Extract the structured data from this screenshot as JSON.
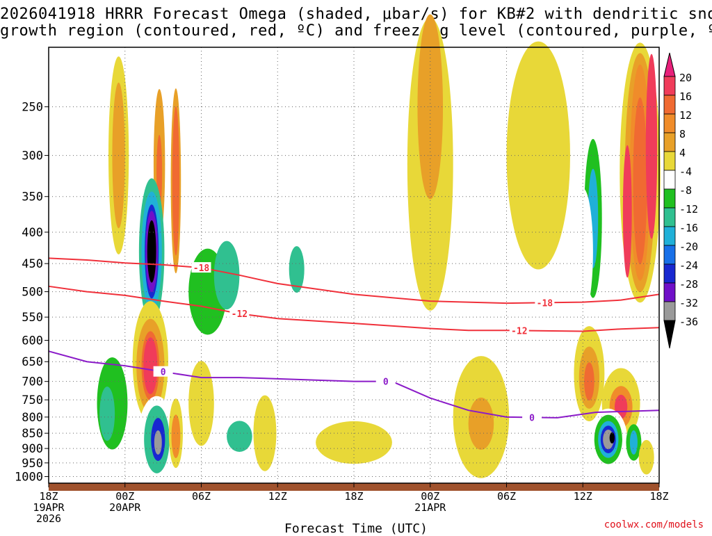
{
  "title": {
    "line1": "2026041918 HRRR Forecast Omega (shaded, μbar/s) for KB#2 with dendritic snow",
    "line2": "growth region (contoured, red, ºC) and freezing level (contoured, purple, ºC)"
  },
  "footer": {
    "xlabel": "Forecast Time (UTC)",
    "credit": "coolwx.com/models"
  },
  "colors": {
    "dgz": "#f0303a",
    "freezing": "#8a1ac8",
    "ground": "#a0522d",
    "grid": "#666666"
  },
  "chart_data": {
    "type": "heatmap",
    "title": "2026041918 HRRR Forecast Omega (shaded, μbar/s) for KB#2 with dendritic snow growth region (contoured, red, ºC) and freezing level (contoured, purple, ºC)",
    "xlabel": "Forecast Time (UTC)",
    "ylabel": "Pressure (hPa)",
    "x_range_hours": [
      0,
      48
    ],
    "y_range_hpa": [
      1025,
      200
    ],
    "y_ticks": [
      250,
      300,
      350,
      400,
      450,
      500,
      550,
      600,
      650,
      700,
      750,
      800,
      850,
      900,
      950,
      1000
    ],
    "x_ticks": [
      {
        "h": 0,
        "l1": "18Z",
        "l2": "19APR",
        "l3": "2026"
      },
      {
        "h": 6,
        "l1": "00Z",
        "l2": "20APR",
        "l3": ""
      },
      {
        "h": 12,
        "l1": "06Z",
        "l2": "",
        "l3": ""
      },
      {
        "h": 18,
        "l1": "12Z",
        "l2": "",
        "l3": ""
      },
      {
        "h": 24,
        "l1": "18Z",
        "l2": "",
        "l3": ""
      },
      {
        "h": 30,
        "l1": "00Z",
        "l2": "21APR",
        "l3": ""
      },
      {
        "h": 36,
        "l1": "06Z",
        "l2": "",
        "l3": ""
      },
      {
        "h": 42,
        "l1": "12Z",
        "l2": "",
        "l3": ""
      },
      {
        "h": 48,
        "l1": "18Z",
        "l2": "",
        "l3": ""
      }
    ],
    "colorbar": {
      "labels": [
        "20",
        "16",
        "12",
        "8",
        "4",
        "-4",
        "-8",
        "-12",
        "-16",
        "-20",
        "-24",
        "-28",
        "-32",
        "-36"
      ],
      "colors": [
        "#f03c5a",
        "#f06a32",
        "#f08c2a",
        "#e8a028",
        "#e8d838",
        "#ffffff",
        "#20c020",
        "#30c090",
        "#20b0d8",
        "#1870e8",
        "#1828d0",
        "#7010c8",
        "#9a9a9a",
        "#000000"
      ],
      "top_color": "#e8207a",
      "bottom_color": "#000000"
    },
    "dgz_contours": [
      {
        "label": "-18",
        "label_h": 12.0,
        "points": [
          [
            0,
            441
          ],
          [
            3,
            444
          ],
          [
            6,
            449
          ],
          [
            9,
            452
          ],
          [
            12,
            457
          ],
          [
            15,
            470
          ],
          [
            18,
            485
          ],
          [
            24,
            505
          ],
          [
            30,
            518
          ],
          [
            36,
            522
          ],
          [
            42,
            520
          ],
          [
            45,
            516
          ],
          [
            48,
            505
          ]
        ],
        "label_h2": 39.0
      },
      {
        "label": "-12",
        "label_h": 15.0,
        "points": [
          [
            0,
            490
          ],
          [
            3,
            500
          ],
          [
            6,
            507
          ],
          [
            9,
            518
          ],
          [
            12,
            528
          ],
          [
            15,
            543
          ],
          [
            18,
            553
          ],
          [
            24,
            563
          ],
          [
            30,
            574
          ],
          [
            33,
            578
          ],
          [
            36,
            578
          ],
          [
            42,
            580
          ],
          [
            45,
            575
          ],
          [
            48,
            572
          ]
        ],
        "label_h2": 37.0
      }
    ],
    "freezing_contour": {
      "label": "0",
      "points": [
        [
          0,
          625
        ],
        [
          3,
          650
        ],
        [
          6,
          660
        ],
        [
          9,
          675
        ],
        [
          12,
          690
        ],
        [
          15,
          690
        ],
        [
          18,
          693
        ],
        [
          24,
          700
        ],
        [
          27,
          700
        ],
        [
          30,
          745
        ],
        [
          33,
          780
        ],
        [
          36,
          800
        ],
        [
          40,
          802
        ],
        [
          43,
          786
        ],
        [
          48,
          780
        ]
      ],
      "label_hours": [
        9.0,
        26.5,
        38.0
      ]
    },
    "omega_blobs": [
      {
        "h": 8.7,
        "p": 310,
        "rx": 0.45,
        "ry": 85,
        "v": 8
      },
      {
        "h": 8.7,
        "p": 320,
        "rx": 0.22,
        "ry": 45,
        "v": 16
      },
      {
        "h": 8.1,
        "p": 430,
        "rx": 1.0,
        "ry": 115,
        "v": -12
      },
      {
        "h": 8.1,
        "p": 430,
        "rx": 0.8,
        "ry": 95,
        "v": -16
      },
      {
        "h": 8.1,
        "p": 430,
        "rx": 0.55,
        "ry": 75,
        "v": -24
      },
      {
        "h": 8.1,
        "p": 430,
        "rx": 0.48,
        "ry": 65,
        "v": -28
      },
      {
        "h": 8.1,
        "p": 430,
        "rx": 0.35,
        "ry": 50,
        "v": -36
      },
      {
        "h": 10.0,
        "p": 330,
        "rx": 0.4,
        "ry": 110,
        "v": 8
      },
      {
        "h": 10.0,
        "p": 330,
        "rx": 0.28,
        "ry": 90,
        "v": 16
      },
      {
        "h": 5.5,
        "p": 300,
        "rx": 0.8,
        "ry": 120,
        "v": 4
      },
      {
        "h": 5.5,
        "p": 300,
        "rx": 0.5,
        "ry": 80,
        "v": 8
      },
      {
        "h": 12.5,
        "p": 500,
        "rx": 2.0,
        "ry": 120,
        "v": -4
      },
      {
        "h": 12.5,
        "p": 500,
        "rx": 1.5,
        "ry": 80,
        "v": -8
      },
      {
        "h": 14.0,
        "p": 470,
        "rx": 1.0,
        "ry": 60,
        "v": -12
      },
      {
        "h": 20.3,
        "p": 390,
        "rx": 1.5,
        "ry": 130,
        "v": -4
      },
      {
        "h": 18.0,
        "p": 380,
        "rx": 0.8,
        "ry": 60,
        "v": -4
      },
      {
        "h": 19.5,
        "p": 460,
        "rx": 0.6,
        "ry": 40,
        "v": -12
      },
      {
        "h": 8.0,
        "p": 650,
        "rx": 1.4,
        "ry": 145,
        "v": 4
      },
      {
        "h": 8.0,
        "p": 660,
        "rx": 1.1,
        "ry": 115,
        "v": 8
      },
      {
        "h": 8.0,
        "p": 660,
        "rx": 0.7,
        "ry": 85,
        "v": 16
      },
      {
        "h": 8.0,
        "p": 660,
        "rx": 0.55,
        "ry": 70,
        "v": 20
      },
      {
        "h": 5.0,
        "p": 760,
        "rx": 1.7,
        "ry": 165,
        "v": -4
      },
      {
        "h": 5.0,
        "p": 760,
        "rx": 1.2,
        "ry": 130,
        "v": -8
      },
      {
        "h": 4.6,
        "p": 790,
        "rx": 0.6,
        "ry": 80,
        "v": -12
      },
      {
        "h": 8.5,
        "p": 870,
        "rx": 1.5,
        "ry": 140,
        "v": -4
      },
      {
        "h": 8.5,
        "p": 870,
        "rx": 1.0,
        "ry": 110,
        "v": -12
      },
      {
        "h": 8.6,
        "p": 870,
        "rx": 0.55,
        "ry": 70,
        "v": -24
      },
      {
        "h": 8.6,
        "p": 880,
        "rx": 0.3,
        "ry": 40,
        "v": -32
      },
      {
        "h": 10.0,
        "p": 850,
        "rx": 0.55,
        "ry": 110,
        "v": 4
      },
      {
        "h": 10.0,
        "p": 860,
        "rx": 0.35,
        "ry": 70,
        "v": 12
      },
      {
        "h": 12.0,
        "p": 760,
        "rx": 1.0,
        "ry": 120,
        "v": 4
      },
      {
        "h": 15.0,
        "p": 850,
        "rx": 1.5,
        "ry": 80,
        "v": -4
      },
      {
        "h": 15.0,
        "p": 860,
        "rx": 1.0,
        "ry": 50,
        "v": -12
      },
      {
        "h": 17.0,
        "p": 850,
        "rx": 0.9,
        "ry": 120,
        "v": 4
      },
      {
        "h": 24.0,
        "p": 880,
        "rx": 3.0,
        "ry": 70,
        "v": 4
      },
      {
        "h": 30.0,
        "p": 310,
        "rx": 1.8,
        "ry": 290,
        "v": 4
      },
      {
        "h": 30.0,
        "p": 250,
        "rx": 1.0,
        "ry": 150,
        "v": 8
      },
      {
        "h": 34.0,
        "p": 800,
        "rx": 2.2,
        "ry": 180,
        "v": 4
      },
      {
        "h": 34.0,
        "p": 820,
        "rx": 1.0,
        "ry": 80,
        "v": 8
      },
      {
        "h": 38.5,
        "p": 300,
        "rx": 2.5,
        "ry": 170,
        "v": 4
      },
      {
        "h": 42.8,
        "p": 380,
        "rx": 1.0,
        "ry": 130,
        "v": -4
      },
      {
        "h": 42.8,
        "p": 380,
        "rx": 0.7,
        "ry": 110,
        "v": -8
      },
      {
        "h": 42.8,
        "p": 380,
        "rx": 0.4,
        "ry": 70,
        "v": -16
      },
      {
        "h": 42.0,
        "p": 430,
        "rx": 0.8,
        "ry": 100,
        "v": -4
      },
      {
        "h": 46.5,
        "p": 320,
        "rx": 1.6,
        "ry": 210,
        "v": 4
      },
      {
        "h": 46.5,
        "p": 320,
        "rx": 1.2,
        "ry": 170,
        "v": 8
      },
      {
        "h": 46.5,
        "p": 320,
        "rx": 0.8,
        "ry": 130,
        "v": 12
      },
      {
        "h": 46.5,
        "p": 330,
        "rx": 0.55,
        "ry": 100,
        "v": 16
      },
      {
        "h": 47.4,
        "p": 290,
        "rx": 0.45,
        "ry": 110,
        "v": 20
      },
      {
        "h": 45.5,
        "p": 370,
        "rx": 0.35,
        "ry": 90,
        "v": 20
      },
      {
        "h": 42.5,
        "p": 680,
        "rx": 1.2,
        "ry": 120,
        "v": 4
      },
      {
        "h": 42.5,
        "p": 690,
        "rx": 0.8,
        "ry": 80,
        "v": 8
      },
      {
        "h": 42.5,
        "p": 700,
        "rx": 0.4,
        "ry": 50,
        "v": 16
      },
      {
        "h": 45.0,
        "p": 760,
        "rx": 1.5,
        "ry": 100,
        "v": 4
      },
      {
        "h": 45.0,
        "p": 770,
        "rx": 0.9,
        "ry": 60,
        "v": 12
      },
      {
        "h": 45.0,
        "p": 770,
        "rx": 0.5,
        "ry": 35,
        "v": 20
      },
      {
        "h": 44.0,
        "p": 870,
        "rx": 1.5,
        "ry": 100,
        "v": -4
      },
      {
        "h": 44.0,
        "p": 870,
        "rx": 1.1,
        "ry": 80,
        "v": -8
      },
      {
        "h": 44.0,
        "p": 870,
        "rx": 0.8,
        "ry": 60,
        "v": -16
      },
      {
        "h": 44.0,
        "p": 870,
        "rx": 0.6,
        "ry": 45,
        "v": -24
      },
      {
        "h": 44.0,
        "p": 870,
        "rx": 0.42,
        "ry": 32,
        "v": -32
      },
      {
        "h": 44.3,
        "p": 865,
        "rx": 0.2,
        "ry": 18,
        "v": -36
      },
      {
        "h": 46.0,
        "p": 880,
        "rx": 0.6,
        "ry": 60,
        "v": -8
      },
      {
        "h": 46.0,
        "p": 880,
        "rx": 0.3,
        "ry": 40,
        "v": -16
      },
      {
        "h": 47.0,
        "p": 930,
        "rx": 0.6,
        "ry": 60,
        "v": 4
      }
    ]
  }
}
